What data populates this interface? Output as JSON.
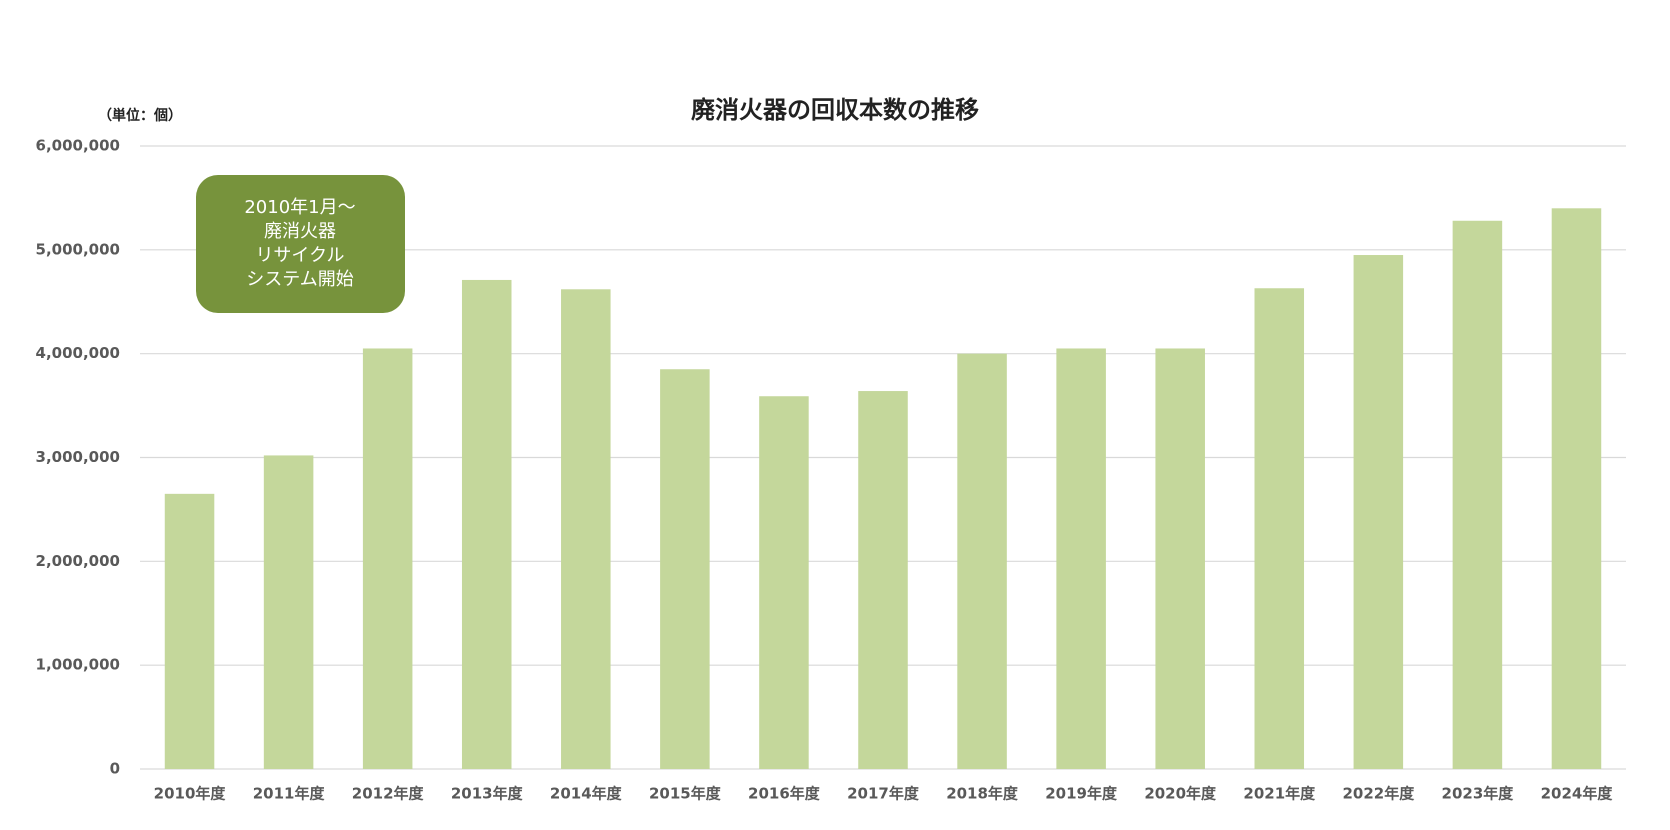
{
  "chart_data": {
    "type": "bar",
    "title": "廃消火器の回収本数の推移",
    "unit_label": "（単位：個）",
    "categories": [
      "2010年度",
      "2011年度",
      "2012年度",
      "2013年度",
      "2014年度",
      "2015年度",
      "2016年度",
      "2017年度",
      "2018年度",
      "2019年度",
      "2020年度",
      "2021年度",
      "2022年度",
      "2023年度",
      "2024年度"
    ],
    "values": [
      2650000,
      3020000,
      4050000,
      4710000,
      4620000,
      3850000,
      3590000,
      3640000,
      4000000,
      4050000,
      4050000,
      4630000,
      4950000,
      5280000,
      5400000
    ],
    "color": "#c4d79b",
    "ylim": [
      0,
      6000000
    ],
    "yticks": [
      0,
      {
        "value": 1000000,
        "label": "1,000,000"
      },
      {
        "value": 2000000,
        "label": "2,000,000"
      },
      {
        "value": 3000000,
        "label": "3,000,000"
      },
      {
        "value": 4000000,
        "label": "4,000,000"
      },
      {
        "value": 5000000,
        "label": "5,000,000"
      },
      {
        "value": 6000000,
        "label": "6,000,000"
      }
    ],
    "grid": true,
    "annotation": {
      "lines": [
        "2010年1月～",
        "廃消火器",
        "リサイクル",
        "システム開始"
      ],
      "color": "#77933c"
    }
  }
}
